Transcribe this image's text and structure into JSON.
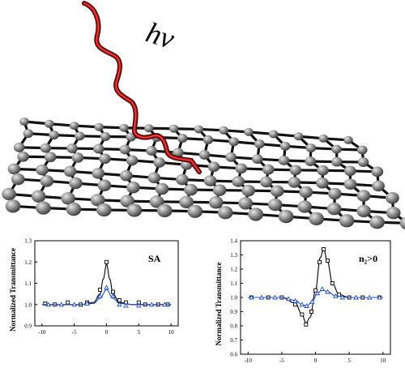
{
  "illustration": {
    "photon_label": "hν",
    "photon_color": "#b01010",
    "atom_color": "#8a8a8a",
    "bond_color": "#111111"
  },
  "charts": [
    {
      "type": "line",
      "tag": "SA",
      "ylabel": "Normalized Transmittance",
      "xlim": [
        -10,
        10
      ],
      "ylim": [
        0.9,
        1.3
      ],
      "xticks": [
        "-10",
        "-5",
        "0",
        "5",
        "10"
      ],
      "yticks": [
        "0.9",
        "1.0",
        "1.1",
        "1.2",
        "1.3"
      ],
      "series": [
        {
          "color": "#000000",
          "marker": "square",
          "fit": [
            [
              -10,
              1.0
            ],
            [
              -4,
              1.0
            ],
            [
              -2,
              1.01
            ],
            [
              -1,
              1.05
            ],
            [
              -0.5,
              1.12
            ],
            [
              0,
              1.19
            ],
            [
              0.5,
              1.12
            ],
            [
              1,
              1.05
            ],
            [
              2,
              1.01
            ],
            [
              4,
              1.0
            ],
            [
              10,
              1.0
            ]
          ],
          "points": [
            [
              -9.5,
              1.005
            ],
            [
              -8,
              1.0
            ],
            [
              -6,
              1.01
            ],
            [
              -4,
              1.0
            ],
            [
              -3,
              1.01
            ],
            [
              -1,
              1.07
            ],
            [
              0,
              1.2
            ],
            [
              1,
              1.06
            ],
            [
              2,
              1.02
            ],
            [
              3,
              1.01
            ],
            [
              5,
              1.01
            ],
            [
              6,
              1.0
            ],
            [
              8,
              1.0
            ],
            [
              9.5,
              1.0
            ]
          ]
        },
        {
          "color": "#2050d0",
          "marker": "triangle",
          "fit": [
            [
              -10,
              1.0
            ],
            [
              -4,
              1.0
            ],
            [
              -2,
              1.005
            ],
            [
              -1,
              1.03
            ],
            [
              0,
              1.07
            ],
            [
              1,
              1.03
            ],
            [
              2,
              1.005
            ],
            [
              4,
              1.0
            ],
            [
              10,
              1.0
            ]
          ],
          "points": [
            [
              -9,
              1.0
            ],
            [
              -7,
              1.0
            ],
            [
              -5,
              1.0
            ],
            [
              -3,
              1.005
            ],
            [
              -1,
              1.04
            ],
            [
              0,
              1.08
            ],
            [
              1,
              1.04
            ],
            [
              2,
              1.0
            ],
            [
              3,
              0.995
            ],
            [
              5,
              0.995
            ],
            [
              7,
              1.0
            ],
            [
              9,
              1.0
            ]
          ]
        }
      ]
    },
    {
      "type": "line",
      "tag": "n₂>0",
      "ylabel": "Normalized Transmittance",
      "xlim": [
        -10,
        10
      ],
      "ylim": [
        0.6,
        1.4
      ],
      "xticks": [
        "-10",
        "-5",
        "0",
        "5",
        "10"
      ],
      "yticks": [
        "0.6",
        "0.7",
        "0.8",
        "0.9",
        "1.0",
        "1.1",
        "1.2",
        "1.3",
        "1.4"
      ],
      "series": [
        {
          "color": "#000000",
          "marker": "square",
          "fit": [
            [
              -10,
              1.0
            ],
            [
              -5,
              1.0
            ],
            [
              -3,
              0.96
            ],
            [
              -2,
              0.88
            ],
            [
              -1.4,
              0.82
            ],
            [
              -0.8,
              0.86
            ],
            [
              0,
              1.05
            ],
            [
              0.7,
              1.28
            ],
            [
              1.2,
              1.34
            ],
            [
              1.8,
              1.25
            ],
            [
              2.5,
              1.1
            ],
            [
              3.5,
              1.02
            ],
            [
              5,
              1.0
            ],
            [
              10,
              1.0
            ]
          ],
          "points": [
            [
              -9.5,
              1.0
            ],
            [
              -7,
              1.0
            ],
            [
              -5,
              1.0
            ],
            [
              -3,
              0.95
            ],
            [
              -2,
              0.88
            ],
            [
              -1.4,
              0.81
            ],
            [
              -0.6,
              0.9
            ],
            [
              0,
              1.05
            ],
            [
              0.6,
              1.25
            ],
            [
              1.2,
              1.34
            ],
            [
              1.8,
              1.26
            ],
            [
              2.5,
              1.1
            ],
            [
              3.5,
              1.02
            ],
            [
              5,
              1.0
            ],
            [
              7,
              1.0
            ],
            [
              9.5,
              1.0
            ]
          ]
        },
        {
          "color": "#2050d0",
          "marker": "triangle",
          "fit": [
            [
              -10,
              1.0
            ],
            [
              -5,
              1.0
            ],
            [
              -3,
              0.98
            ],
            [
              -2,
              0.95
            ],
            [
              -1.3,
              0.94
            ],
            [
              -0.5,
              0.97
            ],
            [
              0.3,
              1.03
            ],
            [
              1,
              1.055
            ],
            [
              1.8,
              1.04
            ],
            [
              3,
              1.01
            ],
            [
              5,
              1.0
            ],
            [
              10,
              1.0
            ]
          ],
          "points": [
            [
              -9.5,
              1.0
            ],
            [
              -8,
              1.0
            ],
            [
              -6,
              1.0
            ],
            [
              -4,
              0.99
            ],
            [
              -3,
              0.975
            ],
            [
              -2,
              0.95
            ],
            [
              -1.3,
              0.94
            ],
            [
              -0.5,
              0.97
            ],
            [
              0.3,
              1.03
            ],
            [
              1,
              1.06
            ],
            [
              1.8,
              1.04
            ],
            [
              3,
              1.01
            ],
            [
              4,
              1.0
            ],
            [
              6,
              1.0
            ],
            [
              8,
              1.0
            ],
            [
              9.5,
              1.0
            ]
          ]
        }
      ]
    }
  ]
}
